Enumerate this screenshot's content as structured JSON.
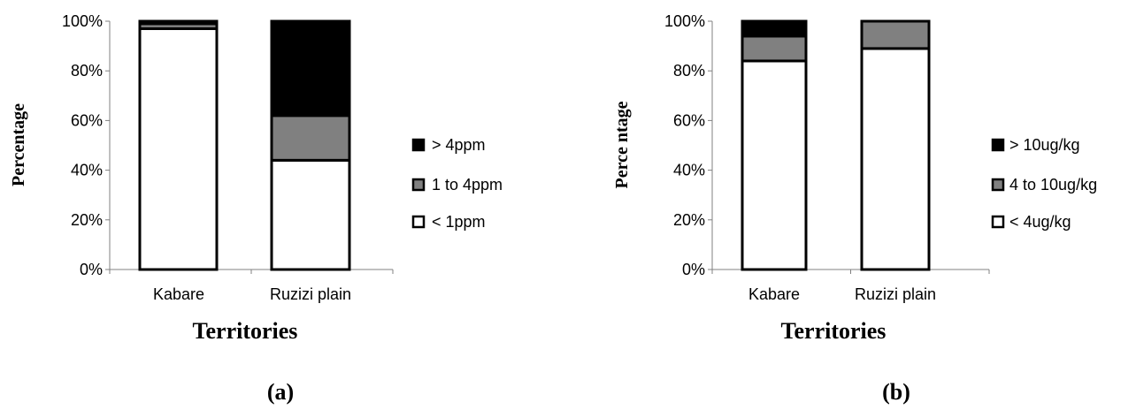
{
  "chart_data": [
    {
      "type": "bar",
      "stacked": true,
      "percent": true,
      "panel_label": "(a)",
      "xlabel": "Territories",
      "ylabel": "Percentage",
      "categories": [
        "Kabare",
        "Ruzizi plain"
      ],
      "ylim": [
        0,
        100
      ],
      "yticks": [
        "0%",
        "20%",
        "40%",
        "60%",
        "80%",
        "100%"
      ],
      "series": [
        {
          "name": "< 1ppm",
          "color": "#ffffff",
          "values": [
            97,
            44
          ]
        },
        {
          "name": "1 to 4ppm",
          "color": "#808080",
          "values": [
            2,
            18
          ]
        },
        {
          "name": "> 4ppm",
          "color": "#000000",
          "values": [
            1,
            38
          ]
        }
      ],
      "legend": "right",
      "grid": false
    },
    {
      "type": "bar",
      "stacked": true,
      "percent": true,
      "panel_label": "(b)",
      "xlabel": "Territories",
      "ylabel": "Perce ntage",
      "categories": [
        "Kabare",
        "Ruzizi plain"
      ],
      "ylim": [
        0,
        100
      ],
      "yticks": [
        "0%",
        "20%",
        "40%",
        "60%",
        "80%",
        "100%"
      ],
      "series": [
        {
          "name": "< 4ug/kg",
          "color": "#ffffff",
          "values": [
            84,
            89
          ]
        },
        {
          "name": "4 to 10ug/kg",
          "color": "#808080",
          "values": [
            10,
            11
          ]
        },
        {
          "name": "> 10ug/kg",
          "color": "#000000",
          "values": [
            6,
            0
          ]
        }
      ],
      "legend": "right",
      "grid": false
    }
  ]
}
